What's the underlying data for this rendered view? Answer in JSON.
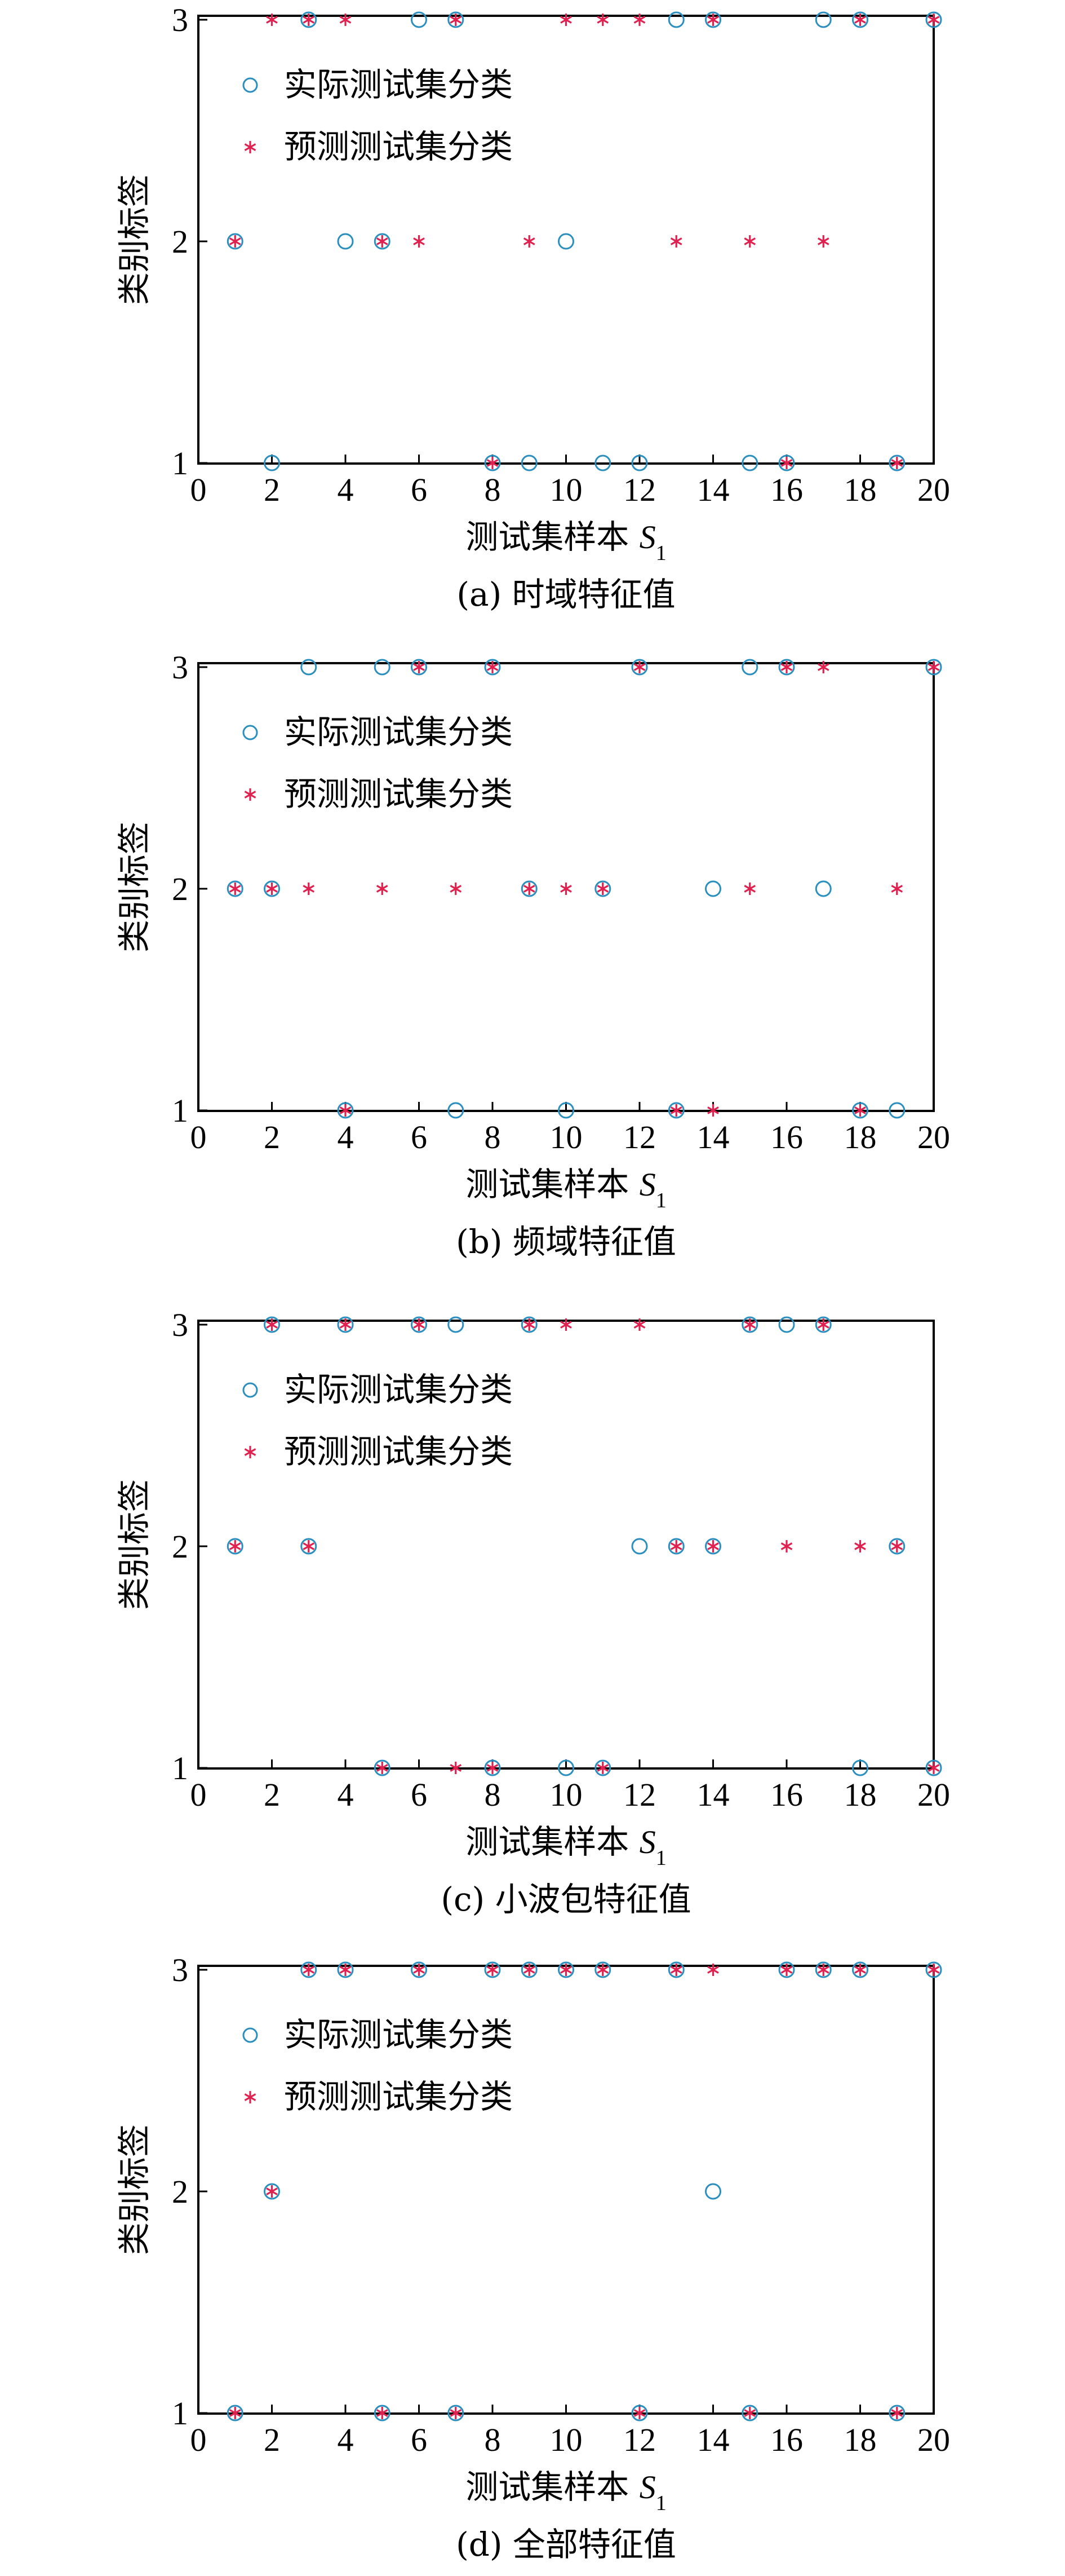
{
  "chart_data": [
    {
      "type": "scatter",
      "caption": "(a) 时域特征值",
      "xlabel": "测试集样本",
      "xlabel_symbol": "S",
      "xlabel_subscript": "1",
      "ylabel": "类别标签",
      "xlim": [
        0,
        20
      ],
      "ylim": [
        1,
        3
      ],
      "x_ticks": [
        0,
        2,
        4,
        6,
        8,
        10,
        12,
        14,
        16,
        18,
        20
      ],
      "y_ticks": [
        1,
        2,
        3
      ],
      "legend_position": "upper-left",
      "x": [
        1,
        2,
        3,
        4,
        5,
        6,
        7,
        8,
        9,
        10,
        11,
        12,
        13,
        14,
        15,
        16,
        17,
        18,
        19,
        20
      ],
      "series": [
        {
          "name": "实际测试集分类",
          "marker": "circle",
          "color": "#2a8fbf",
          "values": [
            2,
            1,
            3,
            2,
            2,
            3,
            3,
            1,
            1,
            2,
            1,
            1,
            3,
            3,
            1,
            1,
            3,
            3,
            1,
            3
          ]
        },
        {
          "name": "预测测试集分类",
          "marker": "asterisk",
          "color": "#e0204e",
          "values": [
            2,
            3,
            3,
            3,
            2,
            2,
            3,
            1,
            2,
            3,
            3,
            3,
            2,
            3,
            2,
            1,
            2,
            3,
            1,
            3
          ]
        }
      ]
    },
    {
      "type": "scatter",
      "caption": "(b) 频域特征值",
      "xlabel": "测试集样本",
      "xlabel_symbol": "S",
      "xlabel_subscript": "1",
      "ylabel": "类别标签",
      "xlim": [
        0,
        20
      ],
      "ylim": [
        1,
        3
      ],
      "x_ticks": [
        0,
        2,
        4,
        6,
        8,
        10,
        12,
        14,
        16,
        18,
        20
      ],
      "y_ticks": [
        1,
        2,
        3
      ],
      "legend_position": "upper-left",
      "x": [
        1,
        2,
        3,
        4,
        5,
        6,
        7,
        8,
        9,
        10,
        11,
        12,
        13,
        14,
        15,
        16,
        17,
        18,
        19,
        20
      ],
      "series": [
        {
          "name": "实际测试集分类",
          "marker": "circle",
          "color": "#2a8fbf",
          "values": [
            2,
            2,
            3,
            1,
            3,
            3,
            1,
            3,
            2,
            1,
            2,
            3,
            1,
            2,
            3,
            3,
            2,
            1,
            1,
            3
          ]
        },
        {
          "name": "预测测试集分类",
          "marker": "asterisk",
          "color": "#e0204e",
          "values": [
            2,
            2,
            2,
            1,
            2,
            3,
            2,
            3,
            2,
            2,
            2,
            3,
            1,
            1,
            2,
            3,
            3,
            1,
            2,
            3
          ]
        }
      ]
    },
    {
      "type": "scatter",
      "caption": "(c) 小波包特征值",
      "xlabel": "测试集样本",
      "xlabel_symbol": "S",
      "xlabel_subscript": "1",
      "ylabel": "类别标签",
      "xlim": [
        0,
        20
      ],
      "ylim": [
        1,
        3
      ],
      "x_ticks": [
        0,
        2,
        4,
        6,
        8,
        10,
        12,
        14,
        16,
        18,
        20
      ],
      "y_ticks": [
        1,
        2,
        3
      ],
      "legend_position": "upper-left",
      "x": [
        1,
        2,
        3,
        4,
        5,
        6,
        7,
        8,
        9,
        10,
        11,
        12,
        13,
        14,
        15,
        16,
        17,
        18,
        19,
        20
      ],
      "series": [
        {
          "name": "实际测试集分类",
          "marker": "circle",
          "color": "#2a8fbf",
          "values": [
            2,
            3,
            2,
            3,
            1,
            3,
            3,
            1,
            3,
            1,
            1,
            2,
            2,
            2,
            3,
            3,
            3,
            1,
            2,
            1
          ]
        },
        {
          "name": "预测测试集分类",
          "marker": "asterisk",
          "color": "#e0204e",
          "values": [
            2,
            3,
            2,
            3,
            1,
            3,
            1,
            1,
            3,
            3,
            1,
            3,
            2,
            2,
            3,
            2,
            3,
            2,
            2,
            1
          ]
        }
      ]
    },
    {
      "type": "scatter",
      "caption": "(d) 全部特征值",
      "xlabel": "测试集样本",
      "xlabel_symbol": "S",
      "xlabel_subscript": "1",
      "ylabel": "类别标签",
      "xlim": [
        0,
        20
      ],
      "ylim": [
        1,
        3
      ],
      "x_ticks": [
        0,
        2,
        4,
        6,
        8,
        10,
        12,
        14,
        16,
        18,
        20
      ],
      "y_ticks": [
        1,
        2,
        3
      ],
      "legend_position": "upper-left",
      "x": [
        1,
        2,
        3,
        4,
        5,
        6,
        7,
        8,
        9,
        10,
        11,
        12,
        13,
        14,
        15,
        16,
        17,
        18,
        19,
        20
      ],
      "series": [
        {
          "name": "实际测试集分类",
          "marker": "circle",
          "color": "#2a8fbf",
          "values": [
            1,
            2,
            3,
            3,
            1,
            3,
            1,
            3,
            3,
            3,
            3,
            1,
            3,
            2,
            1,
            3,
            3,
            3,
            1,
            3
          ]
        },
        {
          "name": "预测测试集分类",
          "marker": "asterisk",
          "color": "#e0204e",
          "values": [
            1,
            2,
            3,
            3,
            1,
            3,
            1,
            3,
            3,
            3,
            3,
            1,
            3,
            3,
            1,
            3,
            3,
            3,
            1,
            3
          ]
        }
      ]
    }
  ]
}
